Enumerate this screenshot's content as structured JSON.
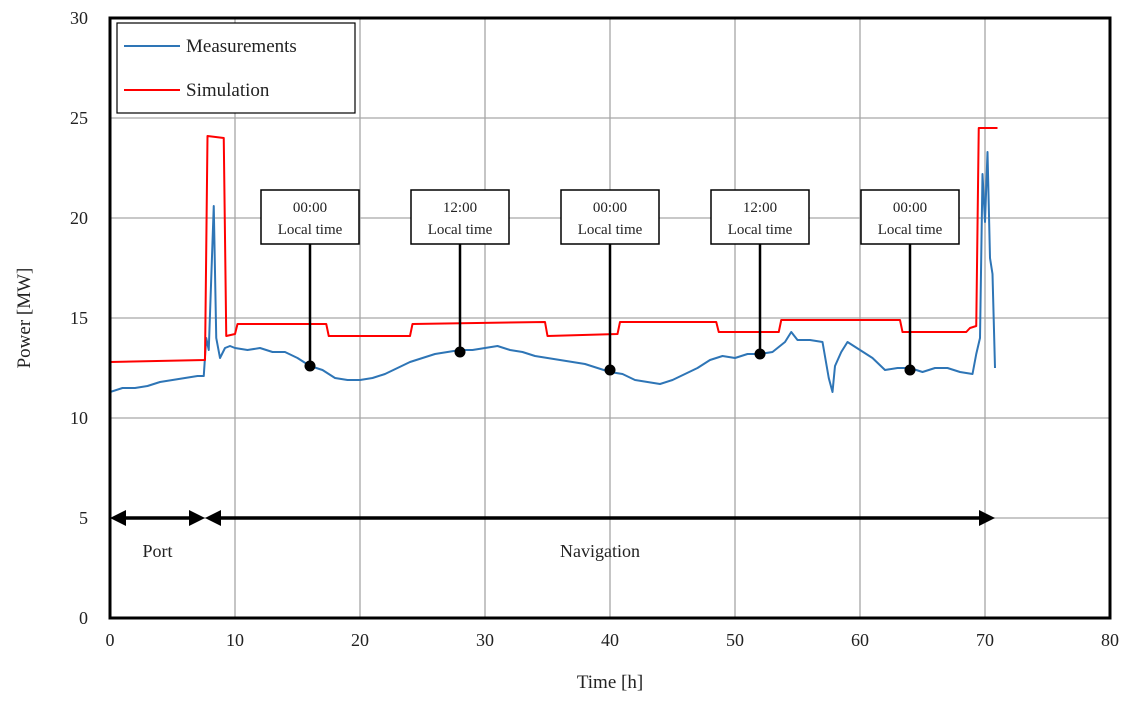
{
  "chart_data": {
    "type": "line",
    "xlabel": "Time [h]",
    "ylabel": "Power [MW]",
    "xlim": [
      0,
      80
    ],
    "ylim": [
      0,
      30
    ],
    "xticks": [
      0,
      10,
      20,
      30,
      40,
      50,
      60,
      70,
      80
    ],
    "yticks": [
      0,
      5,
      10,
      15,
      20,
      25,
      30
    ],
    "grid": true,
    "legend_position": "top-left",
    "series": [
      {
        "name": "Measurements",
        "color": "#2E75B6",
        "x": [
          0,
          1,
          2,
          3,
          4,
          5,
          6,
          7,
          7.5,
          7.7,
          7.9,
          8.1,
          8.3,
          8.5,
          8.8,
          9.2,
          9.6,
          10,
          11,
          12,
          13,
          14,
          15,
          16,
          17,
          18,
          19,
          20,
          21,
          22,
          23,
          24,
          25,
          26,
          27,
          28,
          29,
          30,
          31,
          32,
          33,
          34,
          35,
          36,
          37,
          38,
          39,
          40,
          41,
          42,
          43,
          44,
          45,
          46,
          47,
          48,
          49,
          50,
          51,
          52,
          53,
          54,
          54.5,
          55,
          56,
          57,
          57.5,
          57.8,
          58,
          58.5,
          59,
          60,
          61,
          62,
          63,
          64,
          65,
          66,
          67,
          68,
          69,
          69.3,
          69.6,
          69.8,
          70,
          70.2,
          70.4,
          70.6,
          70.8
        ],
        "y": [
          11.3,
          11.5,
          11.5,
          11.6,
          11.8,
          11.9,
          12.0,
          12.1,
          12.1,
          14.0,
          13.4,
          17.0,
          20.6,
          14.0,
          13.0,
          13.5,
          13.6,
          13.5,
          13.4,
          13.5,
          13.3,
          13.3,
          13.0,
          12.6,
          12.4,
          12.0,
          11.9,
          11.9,
          12.0,
          12.2,
          12.5,
          12.8,
          13.0,
          13.2,
          13.3,
          13.4,
          13.4,
          13.5,
          13.6,
          13.4,
          13.3,
          13.1,
          13.0,
          12.9,
          12.8,
          12.7,
          12.5,
          12.3,
          12.2,
          11.9,
          11.8,
          11.7,
          11.9,
          12.2,
          12.5,
          12.9,
          13.1,
          13.0,
          13.2,
          13.2,
          13.3,
          13.8,
          14.3,
          13.9,
          13.9,
          13.8,
          12.0,
          11.3,
          12.6,
          13.3,
          13.8,
          13.4,
          13.0,
          12.4,
          12.5,
          12.5,
          12.3,
          12.5,
          12.5,
          12.3,
          12.2,
          13.2,
          14.0,
          22.2,
          19.8,
          23.3,
          18.0,
          17.2,
          12.5
        ]
      },
      {
        "name": "Simulation",
        "color": "#FF0000",
        "x": [
          0,
          7.6,
          7.8,
          9.1,
          9.3,
          10,
          10.2,
          17.3,
          17.5,
          24,
          24.2,
          34.8,
          35,
          40.6,
          40.8,
          48.5,
          48.7,
          53.5,
          53.7,
          63.2,
          63.4,
          68.5,
          68.8,
          69.3,
          69.5,
          71
        ],
        "y": [
          12.8,
          12.9,
          24.1,
          24.0,
          14.1,
          14.2,
          14.7,
          14.7,
          14.1,
          14.1,
          14.7,
          14.8,
          14.1,
          14.2,
          14.8,
          14.8,
          14.3,
          14.3,
          14.9,
          14.9,
          14.3,
          14.3,
          14.5,
          14.6,
          24.5,
          24.5
        ]
      }
    ],
    "annotations": [
      {
        "line1": "00:00",
        "line2": "Local time",
        "x": 16,
        "y": 12.6
      },
      {
        "line1": "12:00",
        "line2": "Local time",
        "x": 28,
        "y": 13.3
      },
      {
        "line1": "00:00",
        "line2": "Local time",
        "x": 40,
        "y": 12.4
      },
      {
        "line1": "12:00",
        "line2": "Local time",
        "x": 52,
        "y": 13.2
      },
      {
        "line1": "00:00",
        "line2": "Local time",
        "x": 64,
        "y": 12.4
      }
    ],
    "regions": [
      {
        "label": "Port",
        "from": 0,
        "to": 7.6,
        "y": 5
      },
      {
        "label": "Navigation",
        "from": 7.6,
        "to": 70.8,
        "y": 5
      }
    ]
  }
}
